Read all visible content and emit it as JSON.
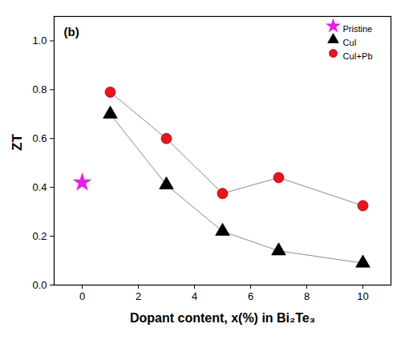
{
  "chart_data": {
    "type": "line",
    "title": "(b)",
    "x_label": "Dopant content, x(%) in Bi₂Te₃",
    "y_label": "ZT",
    "xlim": [
      -1,
      11
    ],
    "xticks": [
      0,
      2,
      4,
      6,
      8,
      10
    ],
    "ylim": [
      0,
      1.1
    ],
    "yticks": [
      {
        "value": 0,
        "label": "0.0"
      },
      0.2,
      0.4,
      0.6,
      0.8,
      {
        "value": 1,
        "label": "1.0"
      }
    ],
    "grid": false,
    "legend": "top-right",
    "series": [
      {
        "name": "Pristine",
        "type": "scatter",
        "color": "#e020e0",
        "marker": "star",
        "x": [
          0
        ],
        "values": [
          0.42
        ]
      },
      {
        "name": "CuI",
        "type": "line",
        "color": "#000000",
        "marker": "triangle",
        "line_style": "solid",
        "x": [
          1,
          3,
          5,
          7,
          10
        ],
        "values": [
          0.7,
          0.41,
          0.22,
          0.14,
          0.09
        ]
      },
      {
        "name": "CuI+Pb",
        "type": "line",
        "color": "#e8141c",
        "marker": "circle",
        "line_style": "solid",
        "x": [
          1,
          3,
          5,
          7,
          10
        ],
        "values": [
          0.79,
          0.6,
          0.375,
          0.44,
          0.325
        ]
      }
    ]
  }
}
